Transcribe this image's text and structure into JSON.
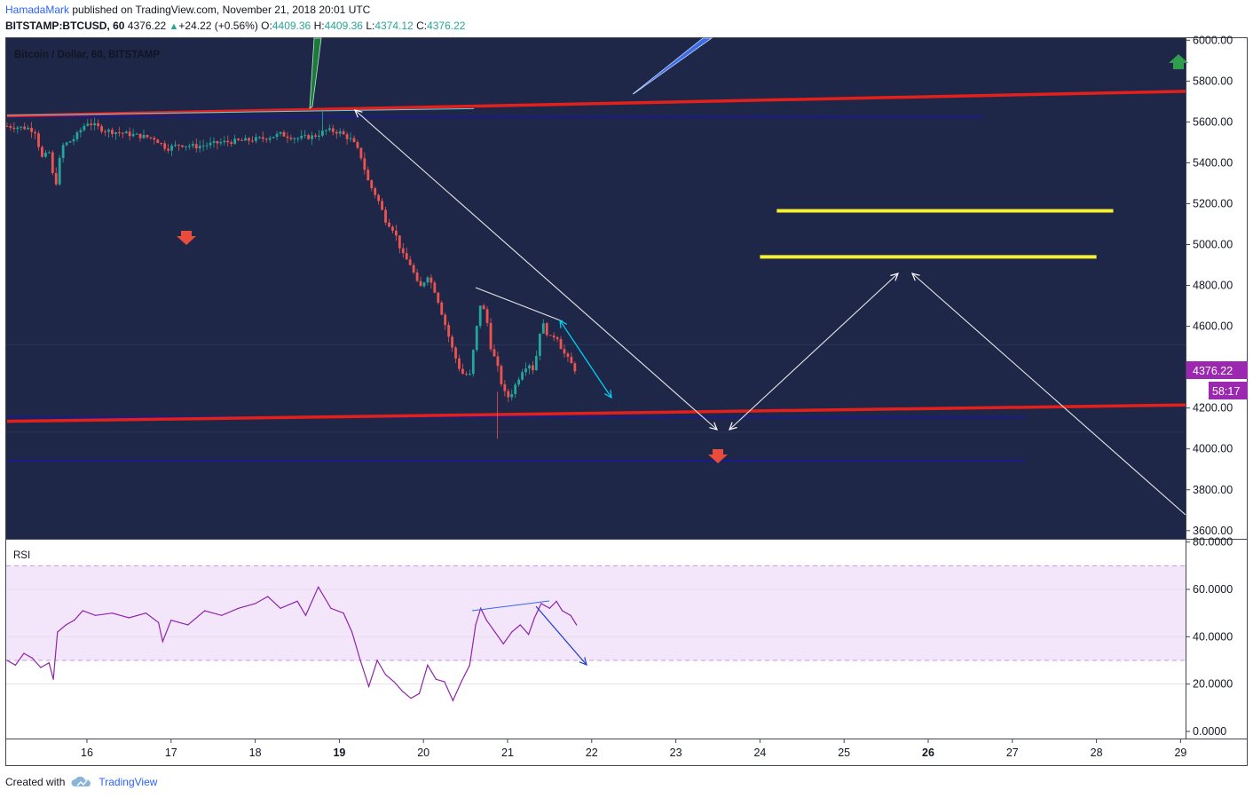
{
  "header": {
    "user": "HamadaMark",
    "published": "published on TradingView.com, November 21, 2018 20:01 UTC",
    "symbol": "BITSTAMP:BTCUSD, 60",
    "last": "4376.22",
    "change": "+24.22 (+0.56%)",
    "o_label": "O:",
    "o": "4409.36",
    "h_label": "H:",
    "h": "4409.36",
    "l_label": "L:",
    "l": "4374.12",
    "c_label": "C:",
    "c": "4376.22"
  },
  "chart_label": "Bitcoin / Dollar, 60, BITSTAMP",
  "rsi_label": "RSI",
  "price_badge": "4376.22",
  "timer_badge": "58:17",
  "footer": {
    "created_with": "Created with",
    "brand": "TradingView"
  },
  "colors": {
    "pane_bg": "#1e2747",
    "rsi_band": "#f3e6fb",
    "red_line": "#e3201b",
    "yellow_line": "#f5f033",
    "cyan": "#00d1f2",
    "rsi_line": "#8e24aa",
    "up": "#26a69a",
    "down": "#ef5350",
    "badge": "#9c27b0"
  },
  "chart_data": [
    {
      "type": "candlestick",
      "title": "Bitcoin / Dollar, 60, BITSTAMP",
      "x_ticks": [
        "16",
        "17",
        "18",
        "19",
        "20",
        "21",
        "22",
        "23",
        "24",
        "25",
        "26",
        "27",
        "28",
        "29"
      ],
      "x_range_days": [
        15.05,
        29.4
      ],
      "y_ticks": [
        "3600.00",
        "3800.00",
        "4000.00",
        "4200.00",
        "4400.00",
        "4600.00",
        "4800.00",
        "5000.00",
        "5200.00",
        "5400.00",
        "5600.00",
        "5800.00",
        "6000.00"
      ],
      "ylim": [
        3560,
        6010
      ],
      "last_price": 4376.22,
      "price_path": [
        [
          15.05,
          5580
        ],
        [
          15.3,
          5570
        ],
        [
          15.4,
          5550
        ],
        [
          15.45,
          5420
        ],
        [
          15.55,
          5450
        ],
        [
          15.62,
          5270
        ],
        [
          15.7,
          5480
        ],
        [
          15.85,
          5520
        ],
        [
          16.0,
          5600
        ],
        [
          16.2,
          5560
        ],
        [
          16.5,
          5540
        ],
        [
          16.8,
          5520
        ],
        [
          16.95,
          5470
        ],
        [
          17.1,
          5490
        ],
        [
          17.3,
          5480
        ],
        [
          17.6,
          5500
        ],
        [
          17.9,
          5510
        ],
        [
          18.1,
          5520
        ],
        [
          18.3,
          5540
        ],
        [
          18.5,
          5520
        ],
        [
          18.7,
          5530
        ],
        [
          18.85,
          5560
        ],
        [
          19.0,
          5550
        ],
        [
          19.15,
          5510
        ],
        [
          19.25,
          5440
        ],
        [
          19.35,
          5300
        ],
        [
          19.45,
          5230
        ],
        [
          19.55,
          5120
        ],
        [
          19.65,
          5070
        ],
        [
          19.75,
          4950
        ],
        [
          19.85,
          4900
        ],
        [
          19.95,
          4780
        ],
        [
          20.05,
          4850
        ],
        [
          20.15,
          4760
        ],
        [
          20.25,
          4620
        ],
        [
          20.35,
          4480
        ],
        [
          20.45,
          4370
        ],
        [
          20.55,
          4360
        ],
        [
          20.62,
          4560
        ],
        [
          20.68,
          4720
        ],
        [
          20.75,
          4640
        ],
        [
          20.8,
          4500
        ],
        [
          20.88,
          4400
        ],
        [
          20.95,
          4280
        ],
        [
          21.02,
          4250
        ],
        [
          21.1,
          4320
        ],
        [
          21.18,
          4390
        ],
        [
          21.25,
          4420
        ],
        [
          21.32,
          4380
        ],
        [
          21.37,
          4560
        ],
        [
          21.42,
          4610
        ],
        [
          21.5,
          4540
        ],
        [
          21.58,
          4560
        ],
        [
          21.65,
          4480
        ],
        [
          21.75,
          4420
        ],
        [
          21.82,
          4376.22
        ]
      ],
      "horizontal_levels": [
        {
          "price": 5625,
          "color": "#1a1a8c",
          "x_start": 15.05,
          "x_end": 26.65
        },
        {
          "price": 4155,
          "color": "#1a1a8c",
          "x_start": 15.05,
          "x_end": 27.15
        },
        {
          "price": 3942,
          "color": "#1a1a8c",
          "x_start": 15.05,
          "x_end": 27.15
        },
        {
          "price": 5165,
          "color": "#f5f033",
          "x_start": 24.2,
          "x_end": 28.2
        },
        {
          "price": 4940,
          "color": "#f5f033",
          "x_start": 24.0,
          "x_end": 28.0
        }
      ],
      "trend_lines": [
        {
          "name": "upper-red-trendline",
          "from": [
            15.05,
            5630
          ],
          "to": [
            29.1,
            5750
          ],
          "color": "#e3201b"
        },
        {
          "name": "lower-red-trendline",
          "from": [
            15.05,
            4135
          ],
          "to": [
            29.1,
            4215
          ],
          "color": "#e3201b"
        }
      ]
    },
    {
      "type": "line",
      "title": "RSI",
      "y_ticks": [
        "0.0000",
        "20.0000",
        "40.0000",
        "60.0000",
        "80.0000"
      ],
      "ylim": [
        -3,
        81
      ],
      "band": [
        30,
        70
      ],
      "values": [
        [
          15.05,
          30
        ],
        [
          15.15,
          28
        ],
        [
          15.25,
          33
        ],
        [
          15.35,
          31
        ],
        [
          15.45,
          27
        ],
        [
          15.55,
          29
        ],
        [
          15.6,
          22
        ],
        [
          15.65,
          42
        ],
        [
          15.75,
          45
        ],
        [
          15.85,
          47
        ],
        [
          15.95,
          51
        ],
        [
          16.1,
          49
        ],
        [
          16.3,
          50
        ],
        [
          16.5,
          48
        ],
        [
          16.7,
          50
        ],
        [
          16.85,
          46
        ],
        [
          16.9,
          38
        ],
        [
          17.0,
          47
        ],
        [
          17.2,
          45
        ],
        [
          17.4,
          51
        ],
        [
          17.6,
          49
        ],
        [
          17.8,
          52
        ],
        [
          18.0,
          54
        ],
        [
          18.15,
          57
        ],
        [
          18.3,
          52
        ],
        [
          18.5,
          55
        ],
        [
          18.6,
          49
        ],
        [
          18.75,
          61
        ],
        [
          18.9,
          52
        ],
        [
          19.05,
          50
        ],
        [
          19.15,
          42
        ],
        [
          19.25,
          30
        ],
        [
          19.35,
          19
        ],
        [
          19.45,
          30
        ],
        [
          19.55,
          24
        ],
        [
          19.65,
          21
        ],
        [
          19.75,
          17
        ],
        [
          19.85,
          14
        ],
        [
          19.95,
          16
        ],
        [
          20.05,
          28
        ],
        [
          20.15,
          22
        ],
        [
          20.25,
          21
        ],
        [
          20.35,
          13
        ],
        [
          20.45,
          21
        ],
        [
          20.55,
          28
        ],
        [
          20.62,
          45
        ],
        [
          20.68,
          52
        ],
        [
          20.75,
          47
        ],
        [
          20.85,
          42
        ],
        [
          20.95,
          37
        ],
        [
          21.05,
          42
        ],
        [
          21.15,
          45
        ],
        [
          21.25,
          41
        ],
        [
          21.32,
          48
        ],
        [
          21.4,
          54
        ],
        [
          21.5,
          52
        ],
        [
          21.58,
          55
        ],
        [
          21.65,
          51
        ],
        [
          21.75,
          49
        ],
        [
          21.82,
          45
        ]
      ]
    }
  ]
}
